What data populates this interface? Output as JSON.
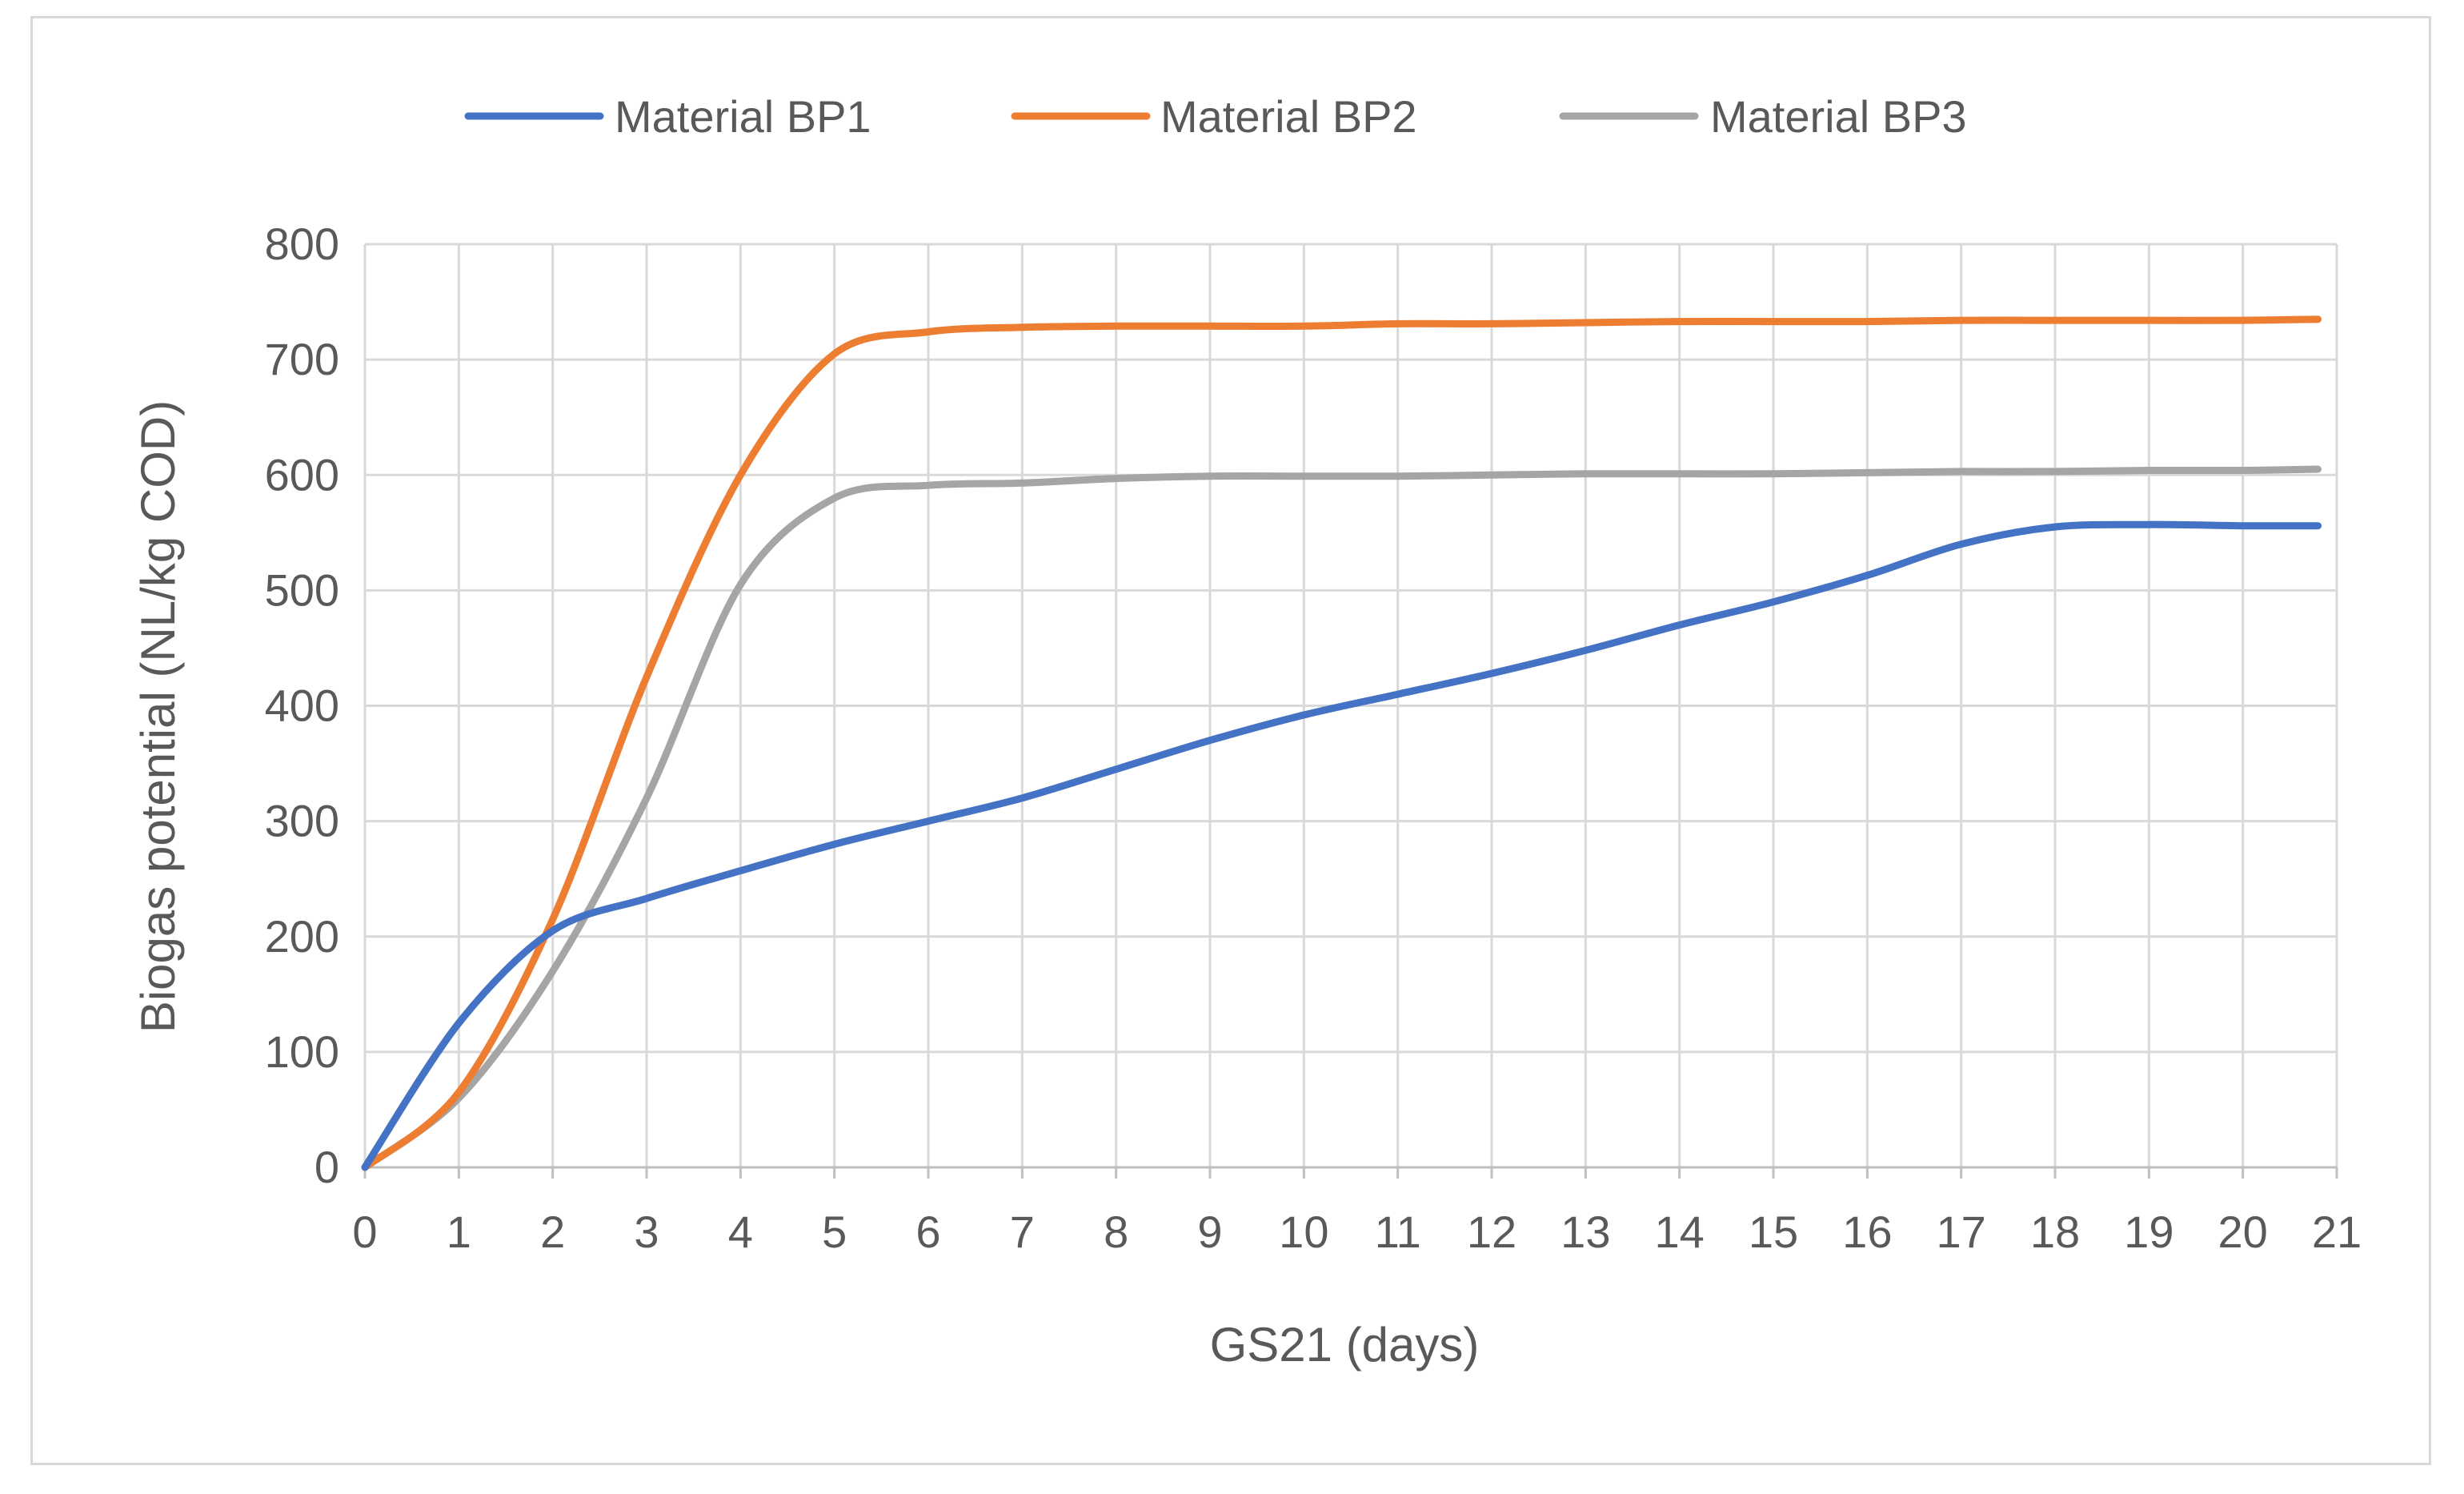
{
  "chart_data": {
    "type": "line",
    "title": "",
    "xlabel": "GS21 (days)",
    "ylabel": "Biogas potential (NL/kg COD)",
    "xlim": [
      0,
      21
    ],
    "ylim": [
      0,
      800
    ],
    "xticks": [
      0,
      1,
      2,
      3,
      4,
      5,
      6,
      7,
      8,
      9,
      10,
      11,
      12,
      13,
      14,
      15,
      16,
      17,
      18,
      19,
      20,
      21
    ],
    "yticks": [
      0,
      100,
      200,
      300,
      400,
      500,
      600,
      700,
      800
    ],
    "grid": true,
    "legend_position": "top-center",
    "series": [
      {
        "name": "Material BP1",
        "color": "#4472C4",
        "x": [
          0,
          1,
          2,
          3,
          4,
          5,
          6,
          7,
          8,
          9,
          10,
          11,
          12,
          13,
          14,
          15,
          16,
          17,
          18,
          19,
          20,
          20.8
        ],
        "values": [
          0,
          125,
          205,
          233,
          257,
          280,
          300,
          320,
          345,
          370,
          392,
          410,
          428,
          448,
          470,
          490,
          513,
          540,
          555,
          557,
          556,
          556
        ]
      },
      {
        "name": "Material BP2",
        "color": "#ED7D31",
        "x": [
          0,
          1,
          2,
          3,
          4,
          5,
          6,
          7,
          8,
          9,
          10,
          11,
          12,
          13,
          14,
          15,
          16,
          17,
          18,
          19,
          20,
          20.8
        ],
        "values": [
          0,
          65,
          215,
          425,
          600,
          705,
          724,
          728,
          729,
          729,
          729,
          731,
          731,
          732,
          733,
          733,
          733,
          734,
          734,
          734,
          734,
          735
        ]
      },
      {
        "name": "Material BP3",
        "color": "#A5A5A5",
        "x": [
          0,
          1,
          2,
          3,
          4,
          5,
          6,
          7,
          8,
          9,
          10,
          11,
          12,
          13,
          14,
          15,
          16,
          17,
          18,
          19,
          20,
          20.8
        ],
        "values": [
          0,
          60,
          170,
          320,
          505,
          580,
          591,
          593,
          597,
          599,
          599,
          599,
          600,
          601,
          601,
          601,
          602,
          603,
          603,
          604,
          604,
          605
        ]
      }
    ]
  }
}
